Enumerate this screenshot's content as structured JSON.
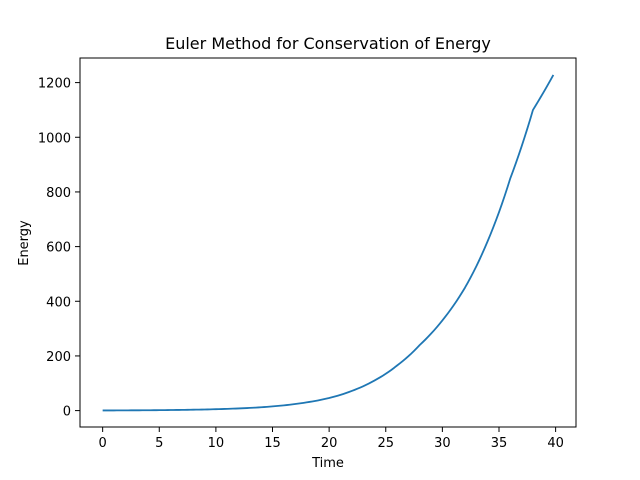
{
  "chart_data": {
    "type": "line",
    "title": "Euler Method for Conservation of Energy",
    "xlabel": "Time",
    "ylabel": "Energy",
    "xlim": [
      -2,
      41.8
    ],
    "ylim": [
      -60,
      1290
    ],
    "xticks": [
      0,
      5,
      10,
      15,
      20,
      25,
      30,
      35,
      40
    ],
    "yticks": [
      0,
      200,
      400,
      600,
      800,
      1000,
      1200
    ],
    "grid": false,
    "legend": "none",
    "series": [
      {
        "color": "#1f77b4",
        "x": [
          0,
          2,
          4,
          6,
          8,
          10,
          12,
          14,
          16,
          18,
          20,
          22,
          24,
          26,
          28,
          30,
          32,
          34,
          36,
          38,
          39.8
        ],
        "y": [
          0.5,
          0.9,
          1.3,
          2.1,
          3.3,
          5.1,
          7.9,
          12.3,
          19.2,
          30,
          46,
          72,
          110,
          165,
          240,
          330,
          450,
          620,
          850,
          1100,
          1228
        ]
      }
    ]
  }
}
